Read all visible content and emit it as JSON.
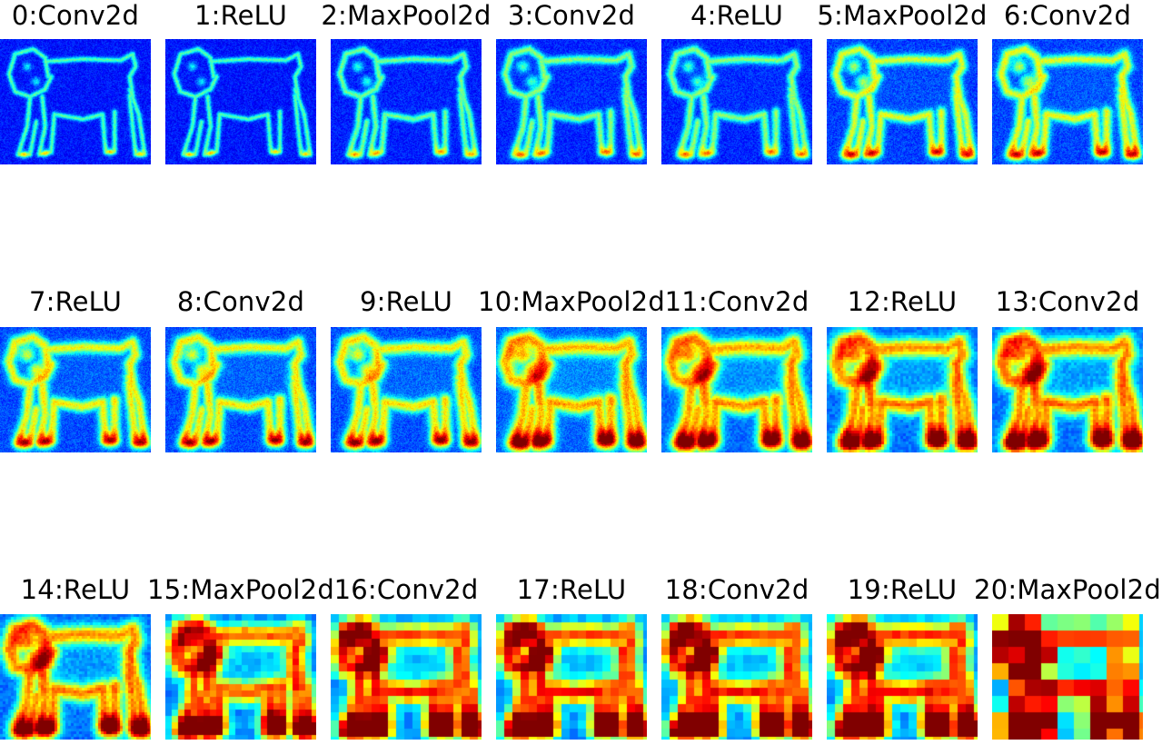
{
  "figure": {
    "colormap": "jet",
    "subject": "dog-silhouette-feature-map",
    "layers": [
      {
        "label": "0:Conv2d",
        "type": "Conv2d",
        "index": 0
      },
      {
        "label": "1:ReLU",
        "type": "ReLU",
        "index": 1
      },
      {
        "label": "2:MaxPool2d",
        "type": "MaxPool2d",
        "index": 2
      },
      {
        "label": "3:Conv2d",
        "type": "Conv2d",
        "index": 3
      },
      {
        "label": "4:ReLU",
        "type": "ReLU",
        "index": 4
      },
      {
        "label": "5:MaxPool2d",
        "type": "MaxPool2d",
        "index": 5
      },
      {
        "label": "6:Conv2d",
        "type": "Conv2d",
        "index": 6
      },
      {
        "label": "7:ReLU",
        "type": "ReLU",
        "index": 7
      },
      {
        "label": "8:Conv2d",
        "type": "Conv2d",
        "index": 8
      },
      {
        "label": "9:ReLU",
        "type": "ReLU",
        "index": 9
      },
      {
        "label": "10:MaxPool2d",
        "type": "MaxPool2d",
        "index": 10
      },
      {
        "label": "11:Conv2d",
        "type": "Conv2d",
        "index": 11
      },
      {
        "label": "12:ReLU",
        "type": "ReLU",
        "index": 12
      },
      {
        "label": "13:Conv2d",
        "type": "Conv2d",
        "index": 13
      },
      {
        "label": "14:ReLU",
        "type": "ReLU",
        "index": 14
      },
      {
        "label": "15:MaxPool2d",
        "type": "MaxPool2d",
        "index": 15
      },
      {
        "label": "16:Conv2d",
        "type": "Conv2d",
        "index": 16
      },
      {
        "label": "17:ReLU",
        "type": "ReLU",
        "index": 17
      },
      {
        "label": "18:Conv2d",
        "type": "Conv2d",
        "index": 18
      },
      {
        "label": "19:ReLU",
        "type": "ReLU",
        "index": 19
      },
      {
        "label": "20:MaxPool2d",
        "type": "MaxPool2d",
        "index": 20
      }
    ]
  }
}
